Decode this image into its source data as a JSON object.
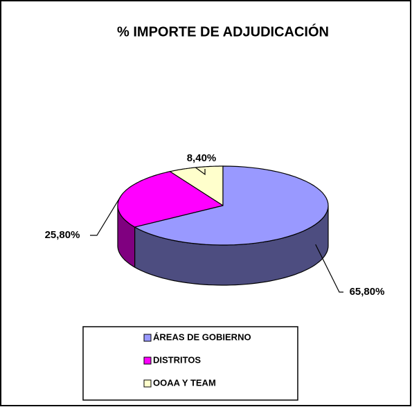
{
  "chart_data": {
    "type": "pie3d",
    "title": "% IMPORTE DE ADJUDICACIÓN",
    "categories": [
      "ÁREAS DE GOBIERNO",
      "DISTRITOS",
      "OOAA Y TEAM"
    ],
    "values": [
      65.8,
      25.8,
      8.4
    ],
    "value_labels": [
      "65,80%",
      "25,80%",
      "8,40%"
    ],
    "colors": [
      "#9999ff",
      "#ff00ff",
      "#ffffcc"
    ],
    "side_colors": [
      "#4d4d80",
      "#800080",
      "#808066"
    ],
    "legend": "bottom"
  }
}
